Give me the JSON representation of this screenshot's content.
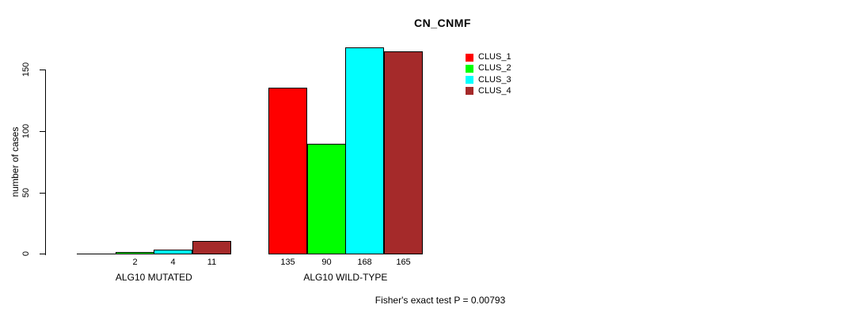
{
  "chart_data": {
    "type": "bar",
    "title": "CN_CNMF",
    "ylabel": "number of cases",
    "xlabel": "",
    "ylim": [
      0,
      150
    ],
    "yticks": [
      0,
      50,
      100,
      150
    ],
    "grid": false,
    "legend_position": "top-right-inside",
    "categories": [
      "ALG10 MUTATED",
      "ALG10 WILD-TYPE"
    ],
    "series": [
      {
        "name": "CLUS_1",
        "color": "#ff0000",
        "values": [
          0,
          135
        ],
        "value_labels": [
          "",
          "135"
        ]
      },
      {
        "name": "CLUS_2",
        "color": "#00ff00",
        "values": [
          2,
          90
        ],
        "value_labels": [
          "2",
          "90"
        ]
      },
      {
        "name": "CLUS_3",
        "color": "#00ffff",
        "values": [
          4,
          168
        ],
        "value_labels": [
          "4",
          "168"
        ]
      },
      {
        "name": "CLUS_4",
        "color": "#a52a2a",
        "values": [
          11,
          165
        ],
        "value_labels": [
          "11",
          "165"
        ]
      }
    ],
    "annotation": "Fisher's exact test P = 0.00793"
  }
}
